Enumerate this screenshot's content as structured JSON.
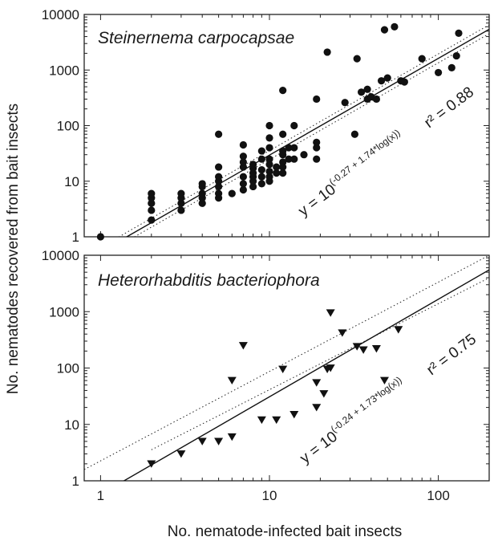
{
  "figure": {
    "ylabel": "No. nematodes recovered from bait insects",
    "xlabel": "No. nematode-infected bait insects"
  },
  "chart_data": [
    {
      "type": "scatter",
      "title": "Steinernema carpocapsae",
      "xscale": "log",
      "yscale": "log",
      "xlim": [
        0.8,
        200
      ],
      "ylim": [
        1,
        10000
      ],
      "y_ticks": [
        "1",
        "10",
        "100",
        "1000",
        "10000"
      ],
      "marker": "circle",
      "color": "#111111",
      "equation": {
        "prefix": "y = 10",
        "exponent": "(-0.27 + 1.74*log(x))"
      },
      "r2": "r² = 0.88",
      "fit": {
        "intercept": -0.27,
        "slope": 1.74
      },
      "confidence_offset": 0.08,
      "points": [
        [
          1,
          1
        ],
        [
          2,
          2
        ],
        [
          2,
          3
        ],
        [
          2,
          4
        ],
        [
          2,
          5
        ],
        [
          2,
          6
        ],
        [
          3,
          3
        ],
        [
          3,
          4
        ],
        [
          3,
          5
        ],
        [
          3,
          6
        ],
        [
          4,
          4
        ],
        [
          4,
          5
        ],
        [
          4,
          6
        ],
        [
          4,
          8
        ],
        [
          4,
          9
        ],
        [
          5,
          5
        ],
        [
          5,
          6
        ],
        [
          5,
          8
        ],
        [
          5,
          10
        ],
        [
          5,
          12
        ],
        [
          5,
          18
        ],
        [
          5,
          70
        ],
        [
          6,
          6
        ],
        [
          7,
          7
        ],
        [
          7,
          9
        ],
        [
          7,
          12
        ],
        [
          7,
          18
        ],
        [
          7,
          22
        ],
        [
          7,
          28
        ],
        [
          7,
          45
        ],
        [
          8,
          8
        ],
        [
          8,
          10
        ],
        [
          8,
          12
        ],
        [
          8,
          14
        ],
        [
          8,
          17
        ],
        [
          8,
          20
        ],
        [
          9,
          9
        ],
        [
          9,
          12
        ],
        [
          9,
          16
        ],
        [
          9,
          25
        ],
        [
          9,
          35
        ],
        [
          10,
          10
        ],
        [
          10,
          12
        ],
        [
          10,
          15
        ],
        [
          10,
          20
        ],
        [
          10,
          25
        ],
        [
          10,
          40
        ],
        [
          10,
          60
        ],
        [
          10,
          100
        ],
        [
          11,
          14
        ],
        [
          11,
          18
        ],
        [
          12,
          14
        ],
        [
          12,
          18
        ],
        [
          12,
          22
        ],
        [
          12,
          30
        ],
        [
          12,
          35
        ],
        [
          12,
          70
        ],
        [
          12,
          430
        ],
        [
          13,
          25
        ],
        [
          13,
          40
        ],
        [
          14,
          25
        ],
        [
          14,
          40
        ],
        [
          14,
          100
        ],
        [
          16,
          30
        ],
        [
          19,
          25
        ],
        [
          19,
          40
        ],
        [
          19,
          50
        ],
        [
          19,
          300
        ],
        [
          22,
          2100
        ],
        [
          28,
          260
        ],
        [
          32,
          70
        ],
        [
          33,
          1600
        ],
        [
          35,
          400
        ],
        [
          38,
          300
        ],
        [
          38,
          450
        ],
        [
          40,
          330
        ],
        [
          43,
          300
        ],
        [
          46,
          640
        ],
        [
          48,
          5300
        ],
        [
          50,
          720
        ],
        [
          55,
          6000
        ],
        [
          60,
          640
        ],
        [
          63,
          610
        ],
        [
          80,
          1600
        ],
        [
          100,
          900
        ],
        [
          120,
          1100
        ],
        [
          128,
          1800
        ],
        [
          132,
          4600
        ]
      ]
    },
    {
      "type": "scatter",
      "title": "Heterorhabditis bacteriophora",
      "xscale": "log",
      "yscale": "log",
      "xlim": [
        0.8,
        200
      ],
      "ylim": [
        1,
        10000
      ],
      "x_ticks": [
        "1",
        "10",
        "100"
      ],
      "y_ticks": [
        "1",
        "10",
        "100",
        "1000",
        "10000"
      ],
      "marker": "triangle-down",
      "color": "#111111",
      "equation": {
        "prefix": "y = 10",
        "exponent": "(-0.24 + 1.73*log(x))"
      },
      "r2": "r² = 0.75",
      "fit": {
        "intercept": -0.24,
        "slope": 1.73
      },
      "confidence_band": {
        "lower": [
          [
            2,
            0.55
          ],
          [
            200,
            3.6
          ]
        ],
        "upper": [
          [
            0.8,
            0.2
          ],
          [
            200,
            4.0
          ]
        ]
      },
      "points": [
        [
          2,
          2
        ],
        [
          3,
          3
        ],
        [
          4,
          5
        ],
        [
          5,
          5
        ],
        [
          6,
          6
        ],
        [
          6,
          60
        ],
        [
          7,
          250
        ],
        [
          9,
          12
        ],
        [
          11,
          12
        ],
        [
          12,
          95
        ],
        [
          14,
          15
        ],
        [
          19,
          20
        ],
        [
          19,
          55
        ],
        [
          21,
          35
        ],
        [
          22,
          95
        ],
        [
          23,
          100
        ],
        [
          23,
          950
        ],
        [
          27,
          420
        ],
        [
          33,
          240
        ],
        [
          36,
          210
        ],
        [
          43,
          220
        ],
        [
          48,
          60
        ],
        [
          58,
          480
        ]
      ]
    }
  ]
}
